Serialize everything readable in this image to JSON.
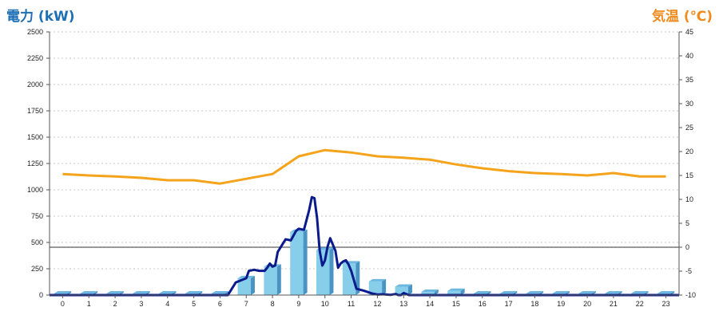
{
  "chart_data": {
    "type": "bar",
    "left_axis": {
      "label": "電力 (kW)",
      "ylim": [
        0,
        2500
      ],
      "ticks": [
        "0",
        "250",
        "500",
        "750",
        "1000",
        "1250",
        "1500",
        "1750",
        "2000",
        "2250",
        "2500"
      ]
    },
    "right_axis": {
      "label": "気温 (℃)",
      "ylim": [
        -10,
        45
      ],
      "ticks": [
        "-10",
        "-5",
        "0",
        "5",
        "10",
        "15",
        "20",
        "25",
        "30",
        "35",
        "40",
        "45"
      ]
    },
    "categories": [
      "0",
      "1",
      "2",
      "3",
      "4",
      "5",
      "6",
      "7",
      "8",
      "9",
      "10",
      "11",
      "12",
      "13",
      "14",
      "15",
      "16",
      "17",
      "18",
      "19",
      "20",
      "21",
      "22",
      "23"
    ],
    "grid": true,
    "series": [
      {
        "type": "bar",
        "axis": "left",
        "values": [
          15,
          15,
          15,
          15,
          15,
          15,
          15,
          160,
          270,
          600,
          430,
          300,
          130,
          80,
          30,
          40,
          15,
          15,
          15,
          15,
          15,
          15,
          15,
          15
        ]
      },
      {
        "type": "line",
        "axis": "left",
        "x": [
          -0.5,
          6.3,
          6.6,
          7.0,
          7.1,
          7.3,
          7.5,
          7.7,
          7.8,
          7.9,
          8.0,
          8.1,
          8.2,
          8.5,
          8.7,
          8.9,
          9.0,
          9.2,
          9.4,
          9.5,
          9.6,
          9.7,
          9.8,
          9.9,
          10.0,
          10.1,
          10.2,
          10.3,
          10.4,
          10.5,
          10.6,
          10.7,
          10.8,
          10.9,
          11.0,
          11.2,
          11.5,
          11.8,
          12.0,
          12.2,
          12.5,
          12.7,
          12.8,
          12.9,
          13.0,
          13.2,
          13.5,
          13.8,
          14.0,
          14.3,
          14.6,
          14.8,
          15.0,
          15.3,
          15.6,
          16.0,
          23.5
        ],
        "values": [
          0,
          0,
          120,
          160,
          230,
          240,
          230,
          230,
          260,
          300,
          270,
          280,
          410,
          530,
          520,
          610,
          630,
          620,
          810,
          930,
          920,
          730,
          420,
          280,
          330,
          460,
          540,
          480,
          420,
          260,
          300,
          320,
          330,
          290,
          230,
          60,
          40,
          15,
          5,
          8,
          2,
          10,
          -10,
          -20,
          20,
          -15,
          -20,
          -25,
          -30,
          -25,
          -35,
          -15,
          -35,
          -45,
          -50,
          -55,
          -55
        ]
      },
      {
        "type": "line",
        "axis": "right",
        "x": [
          0,
          1,
          2,
          3,
          4,
          5,
          6,
          7,
          8,
          9,
          10,
          11,
          12,
          13,
          14,
          15,
          16,
          17,
          18,
          19,
          20,
          21,
          22,
          23
        ],
        "values": [
          15.3,
          15,
          14.8,
          14.5,
          14,
          14,
          13.3,
          14.3,
          15.3,
          19,
          20.3,
          19.8,
          19,
          18.7,
          18.3,
          17.3,
          16.5,
          15.9,
          15.5,
          15.3,
          15,
          15.5,
          14.8,
          14.8
        ]
      }
    ]
  }
}
